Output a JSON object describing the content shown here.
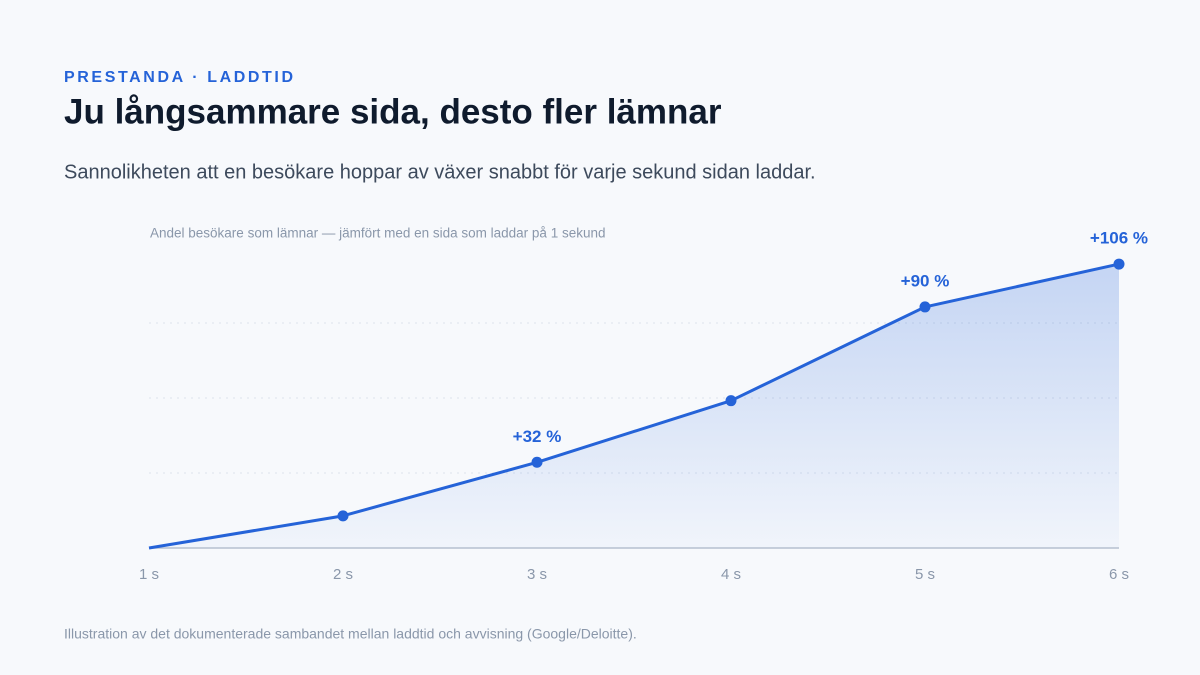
{
  "eyebrow": "PRESTANDA · LADDTID",
  "chart_data": {
    "type": "line",
    "title": "Ju långsammare sida, desto fler lämnar",
    "subtitle": "Sannolikheten att en besökare hoppar av växer snabbt för varje sekund sidan laddar.",
    "y_label": "Andel besökare som lämnar — jämfört med en sida som laddar på 1 sekund",
    "categories": [
      "1 s",
      "2 s",
      "3 s",
      "4 s",
      "5 s",
      "6 s"
    ],
    "values": [
      0,
      12,
      32,
      55,
      90,
      106
    ],
    "value_labels": [
      null,
      null,
      "+32 %",
      null,
      "+90 %",
      "+106 %"
    ],
    "color": "#2563d8",
    "ylim": [
      0,
      112
    ],
    "yticks": [
      28,
      56,
      84
    ],
    "grid": true,
    "note": "Illustration av det dokumenterade sambandet mellan laddtid och avvisning (Google/Deloitte)."
  }
}
